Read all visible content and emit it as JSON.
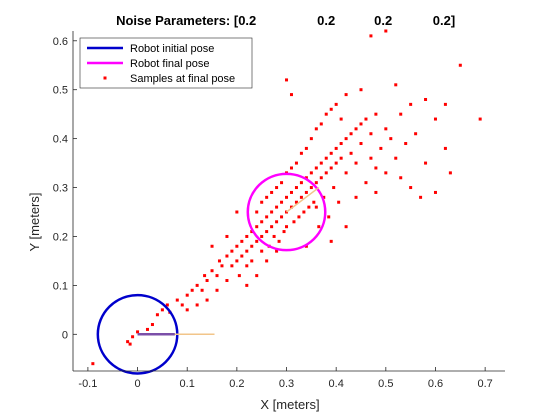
{
  "chart_data": {
    "type": "scatter",
    "title_parts": [
      "Noise Parameters: [0.2",
      "0.2",
      "0.2",
      "0.2]"
    ],
    "xlabel": "X [meters]",
    "ylabel": "Y [meters]",
    "xlim": [
      -0.13,
      0.74
    ],
    "ylim": [
      -0.075,
      0.62
    ],
    "xticks": [
      "-0.1",
      "0",
      "0.1",
      "0.2",
      "0.3",
      "0.4",
      "0.5",
      "0.6",
      "0.7"
    ],
    "xtick_values": [
      -0.1,
      0,
      0.1,
      0.2,
      0.3,
      0.4,
      0.5,
      0.6,
      0.7
    ],
    "yticks": [
      "0",
      "0.1",
      "0.2",
      "0.3",
      "0.4",
      "0.5",
      "0.6"
    ],
    "ytick_values": [
      0,
      0.1,
      0.2,
      0.3,
      0.4,
      0.5,
      0.6
    ],
    "grid": false,
    "legend_position": "top-left",
    "series": [
      {
        "name": "Robot initial pose",
        "kind": "circle",
        "color": "#0000cc",
        "center": [
          0,
          0
        ],
        "radius": 0.08,
        "heading_end": [
          0.155,
          0
        ]
      },
      {
        "name": "Robot final pose",
        "kind": "circle",
        "color": "#ff00ff",
        "center": [
          0.3,
          0.25
        ],
        "radius": 0.078,
        "heading_end": [
          0.365,
          0.3
        ]
      },
      {
        "name": "Samples at final pose",
        "kind": "scatter",
        "color": "#ff0000",
        "points": [
          [
            -0.09,
            -0.06
          ],
          [
            -0.02,
            -0.015
          ],
          [
            -0.015,
            -0.02
          ],
          [
            -0.01,
            -0.005
          ],
          [
            0.0,
            0.005
          ],
          [
            0.02,
            0.01
          ],
          [
            0.03,
            0.02
          ],
          [
            0.04,
            0.04
          ],
          [
            0.05,
            0.05
          ],
          [
            0.06,
            0.06
          ],
          [
            0.065,
            0.045
          ],
          [
            0.08,
            0.07
          ],
          [
            0.09,
            0.06
          ],
          [
            0.1,
            0.08
          ],
          [
            0.11,
            0.09
          ],
          [
            0.12,
            0.1
          ],
          [
            0.13,
            0.09
          ],
          [
            0.135,
            0.12
          ],
          [
            0.14,
            0.11
          ],
          [
            0.15,
            0.13
          ],
          [
            0.16,
            0.12
          ],
          [
            0.165,
            0.15
          ],
          [
            0.17,
            0.14
          ],
          [
            0.18,
            0.16
          ],
          [
            0.18,
            0.11
          ],
          [
            0.19,
            0.17
          ],
          [
            0.19,
            0.14
          ],
          [
            0.2,
            0.18
          ],
          [
            0.2,
            0.15
          ],
          [
            0.205,
            0.12
          ],
          [
            0.21,
            0.19
          ],
          [
            0.21,
            0.16
          ],
          [
            0.22,
            0.2
          ],
          [
            0.22,
            0.17
          ],
          [
            0.22,
            0.14
          ],
          [
            0.23,
            0.21
          ],
          [
            0.23,
            0.18
          ],
          [
            0.23,
            0.15
          ],
          [
            0.24,
            0.22
          ],
          [
            0.24,
            0.19
          ],
          [
            0.24,
            0.25
          ],
          [
            0.25,
            0.23
          ],
          [
            0.25,
            0.2
          ],
          [
            0.25,
            0.17
          ],
          [
            0.25,
            0.27
          ],
          [
            0.26,
            0.24
          ],
          [
            0.26,
            0.21
          ],
          [
            0.26,
            0.28
          ],
          [
            0.265,
            0.18
          ],
          [
            0.27,
            0.25
          ],
          [
            0.27,
            0.22
          ],
          [
            0.27,
            0.29
          ],
          [
            0.275,
            0.2
          ],
          [
            0.28,
            0.26
          ],
          [
            0.28,
            0.23
          ],
          [
            0.28,
            0.3
          ],
          [
            0.285,
            0.19
          ],
          [
            0.29,
            0.27
          ],
          [
            0.29,
            0.24
          ],
          [
            0.29,
            0.31
          ],
          [
            0.295,
            0.21
          ],
          [
            0.3,
            0.28
          ],
          [
            0.3,
            0.25
          ],
          [
            0.3,
            0.33
          ],
          [
            0.3,
            0.22
          ],
          [
            0.31,
            0.29
          ],
          [
            0.31,
            0.26
          ],
          [
            0.31,
            0.34
          ],
          [
            0.315,
            0.23
          ],
          [
            0.32,
            0.3
          ],
          [
            0.32,
            0.27
          ],
          [
            0.32,
            0.35
          ],
          [
            0.325,
            0.24
          ],
          [
            0.33,
            0.31
          ],
          [
            0.33,
            0.28
          ],
          [
            0.33,
            0.37
          ],
          [
            0.335,
            0.25
          ],
          [
            0.34,
            0.32
          ],
          [
            0.34,
            0.29
          ],
          [
            0.34,
            0.38
          ],
          [
            0.345,
            0.26
          ],
          [
            0.35,
            0.33
          ],
          [
            0.35,
            0.3
          ],
          [
            0.35,
            0.4
          ],
          [
            0.355,
            0.27
          ],
          [
            0.36,
            0.34
          ],
          [
            0.36,
            0.31
          ],
          [
            0.36,
            0.42
          ],
          [
            0.365,
            0.22
          ],
          [
            0.37,
            0.35
          ],
          [
            0.37,
            0.32
          ],
          [
            0.37,
            0.43
          ],
          [
            0.375,
            0.28
          ],
          [
            0.38,
            0.36
          ],
          [
            0.38,
            0.33
          ],
          [
            0.38,
            0.45
          ],
          [
            0.385,
            0.24
          ],
          [
            0.39,
            0.37
          ],
          [
            0.39,
            0.34
          ],
          [
            0.39,
            0.46
          ],
          [
            0.395,
            0.3
          ],
          [
            0.4,
            0.38
          ],
          [
            0.4,
            0.35
          ],
          [
            0.4,
            0.47
          ],
          [
            0.405,
            0.27
          ],
          [
            0.41,
            0.39
          ],
          [
            0.41,
            0.36
          ],
          [
            0.41,
            0.44
          ],
          [
            0.42,
            0.4
          ],
          [
            0.42,
            0.33
          ],
          [
            0.42,
            0.49
          ],
          [
            0.43,
            0.41
          ],
          [
            0.43,
            0.37
          ],
          [
            0.44,
            0.42
          ],
          [
            0.44,
            0.35
          ],
          [
            0.45,
            0.43
          ],
          [
            0.45,
            0.39
          ],
          [
            0.46,
            0.44
          ],
          [
            0.46,
            0.31
          ],
          [
            0.47,
            0.41
          ],
          [
            0.47,
            0.36
          ],
          [
            0.48,
            0.45
          ],
          [
            0.48,
            0.29
          ],
          [
            0.49,
            0.38
          ],
          [
            0.5,
            0.42
          ],
          [
            0.5,
            0.33
          ],
          [
            0.51,
            0.4
          ],
          [
            0.52,
            0.36
          ],
          [
            0.53,
            0.45
          ],
          [
            0.54,
            0.39
          ],
          [
            0.55,
            0.3
          ],
          [
            0.56,
            0.41
          ],
          [
            0.58,
            0.35
          ],
          [
            0.6,
            0.44
          ],
          [
            0.6,
            0.29
          ],
          [
            0.62,
            0.38
          ],
          [
            0.65,
            0.55
          ],
          [
            0.47,
            0.61
          ],
          [
            0.5,
            0.62
          ],
          [
            0.3,
            0.52
          ],
          [
            0.31,
            0.49
          ],
          [
            0.45,
            0.5
          ],
          [
            0.55,
            0.47
          ],
          [
            0.62,
            0.47
          ],
          [
            0.69,
            0.44
          ],
          [
            0.58,
            0.48
          ],
          [
            0.52,
            0.51
          ],
          [
            0.39,
            0.19
          ],
          [
            0.42,
            0.22
          ],
          [
            0.34,
            0.18
          ],
          [
            0.2,
            0.25
          ],
          [
            0.18,
            0.2
          ],
          [
            0.15,
            0.18
          ],
          [
            0.24,
            0.12
          ],
          [
            0.26,
            0.15
          ],
          [
            0.28,
            0.17
          ],
          [
            0.16,
            0.09
          ],
          [
            0.14,
            0.07
          ],
          [
            0.12,
            0.06
          ],
          [
            0.1,
            0.05
          ],
          [
            0.22,
            0.1
          ],
          [
            0.36,
            0.26
          ],
          [
            0.44,
            0.28
          ],
          [
            0.48,
            0.34
          ],
          [
            0.53,
            0.32
          ],
          [
            0.57,
            0.28
          ],
          [
            0.63,
            0.33
          ]
        ]
      }
    ]
  }
}
